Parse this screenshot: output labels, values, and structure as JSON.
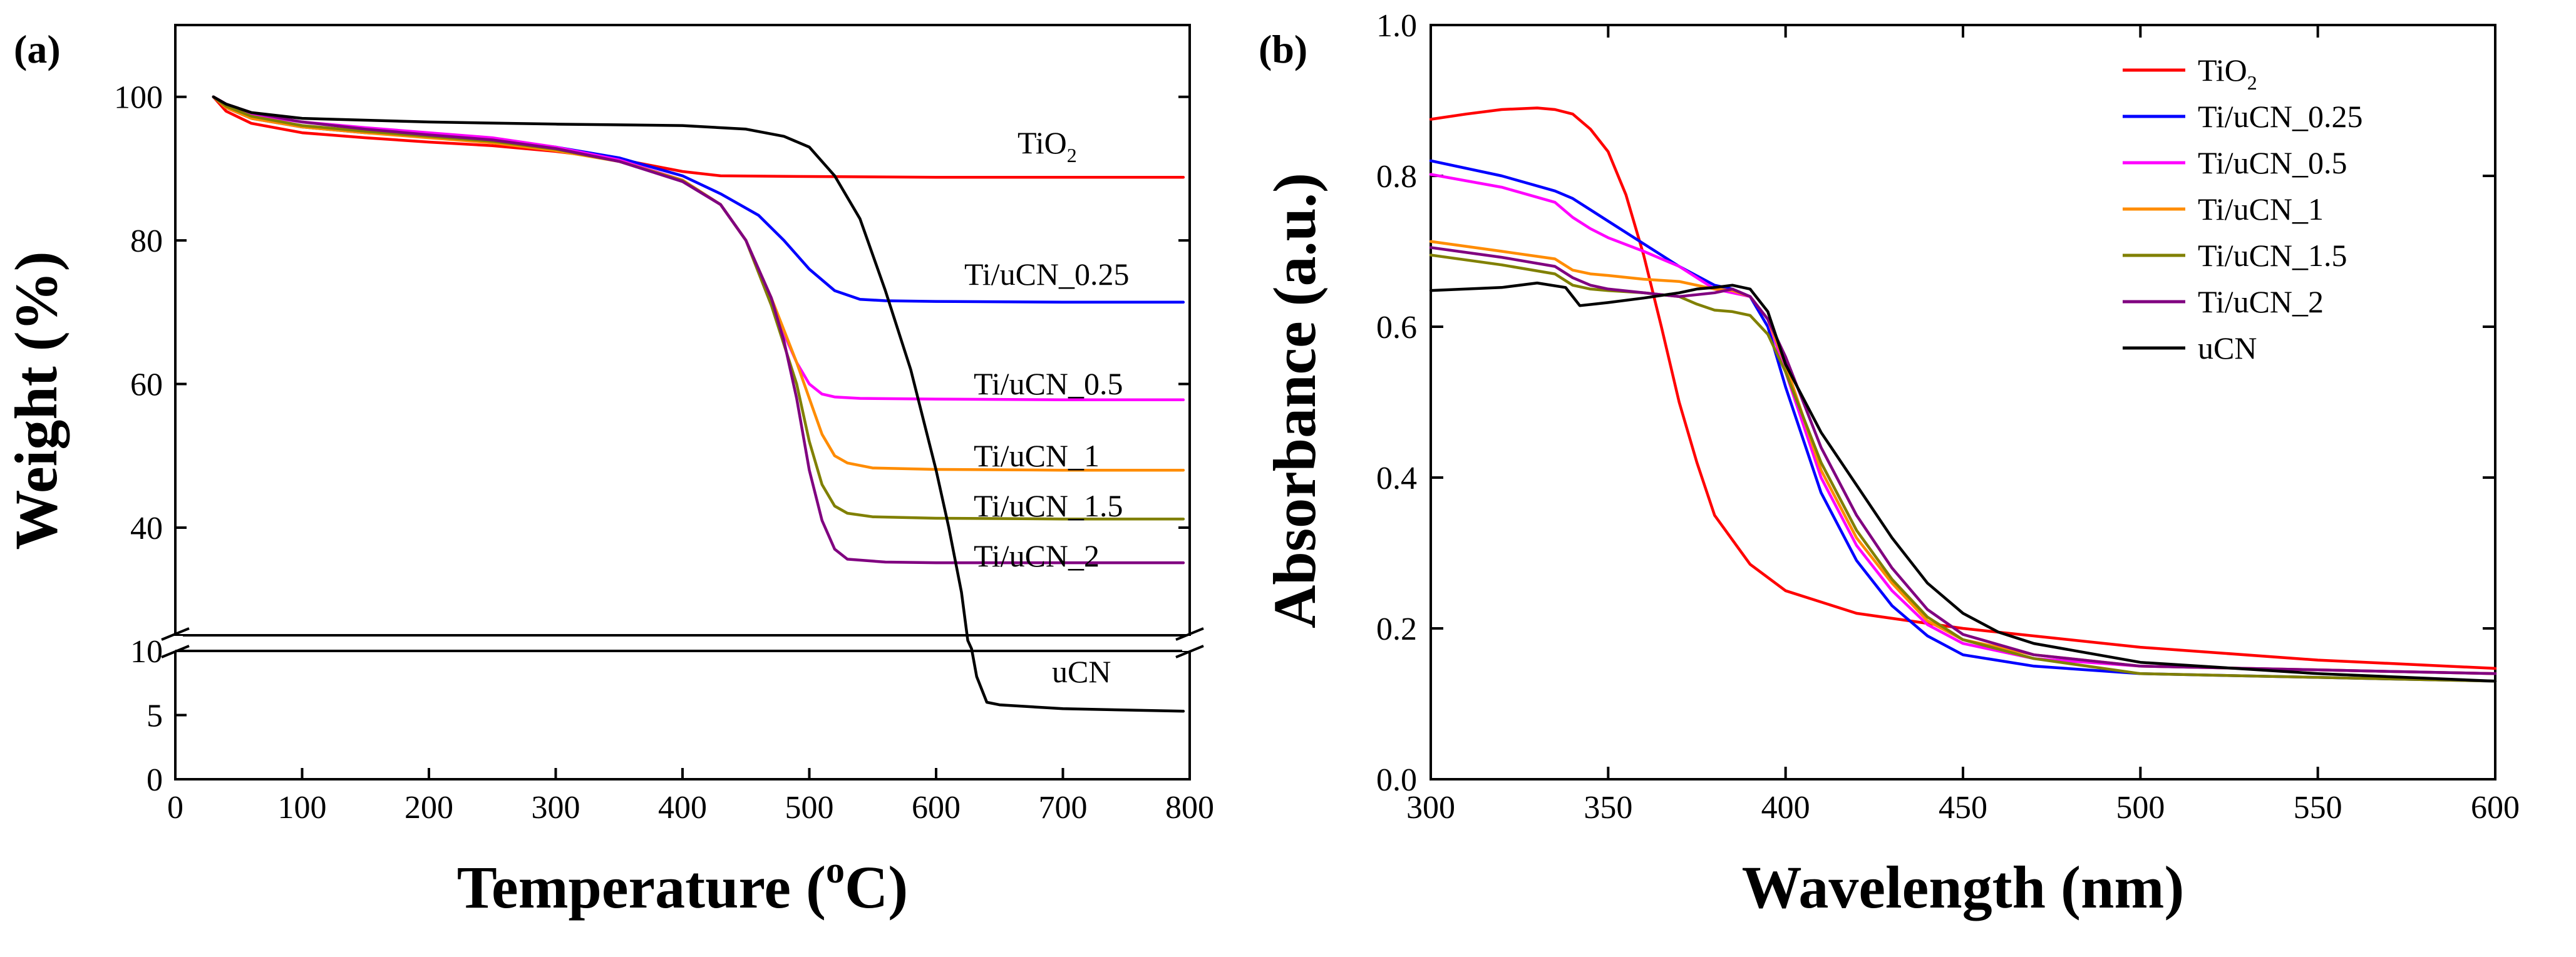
{
  "chart_data": [
    {
      "type": "line",
      "panel_label": "(a)",
      "xlabel": "Temperature (",
      "xlabel_sup": "o",
      "xlabel_tail": "C)",
      "ylabel": "Weight (%)",
      "xlim": [
        0,
        800
      ],
      "xticks": [
        0,
        100,
        200,
        300,
        400,
        500,
        600,
        700,
        800
      ],
      "upper_ylim": [
        25,
        110
      ],
      "upper_yticks": [
        40,
        60,
        80,
        100
      ],
      "lower_ylim": [
        0,
        10
      ],
      "lower_yticks": [
        0,
        5,
        10
      ],
      "axis_break": true,
      "series": [
        {
          "name": "TiO2",
          "label_main": "TiO",
          "label_sub": "2",
          "color": "#ff0000",
          "x": [
            30,
            40,
            60,
            100,
            150,
            200,
            250,
            300,
            350,
            400,
            430,
            500,
            600,
            700,
            795
          ],
          "y": [
            100,
            98,
            96.3,
            95,
            94.3,
            93.7,
            93.2,
            92.4,
            91.3,
            89.6,
            89,
            88.9,
            88.8,
            88.8,
            88.8
          ]
        },
        {
          "name": "Ti/uCN_0.25",
          "label_main": "Ti/uCN_0.25",
          "label_sub": "",
          "color": "#0000ff",
          "x": [
            30,
            40,
            60,
            100,
            150,
            200,
            250,
            300,
            350,
            400,
            430,
            460,
            480,
            500,
            520,
            540,
            560,
            600,
            700,
            795
          ],
          "y": [
            100,
            98.5,
            97,
            95.8,
            95,
            94.5,
            94,
            93,
            91.5,
            89,
            86.5,
            83.5,
            80,
            76,
            73,
            71.8,
            71.6,
            71.5,
            71.4,
            71.4
          ]
        },
        {
          "name": "Ti/uCN_0.5",
          "label_main": "Ti/uCN_0.5",
          "label_sub": "",
          "color": "#ff00ff",
          "x": [
            30,
            40,
            60,
            100,
            150,
            200,
            250,
            300,
            350,
            400,
            430,
            450,
            470,
            490,
            500,
            510,
            520,
            540,
            600,
            700,
            795
          ],
          "y": [
            100,
            99,
            97.5,
            96.5,
            95.7,
            95,
            94.3,
            93,
            91.2,
            88.4,
            85,
            80,
            71,
            63,
            60,
            58.6,
            58.2,
            58.0,
            57.9,
            57.8,
            57.8
          ]
        },
        {
          "name": "Ti/uCN_1",
          "label_main": "Ti/uCN_1",
          "label_sub": "",
          "color": "#ff8c00",
          "x": [
            30,
            40,
            60,
            100,
            150,
            200,
            250,
            300,
            350,
            400,
            430,
            450,
            470,
            490,
            500,
            510,
            520,
            530,
            550,
            600,
            700,
            795
          ],
          "y": [
            100,
            98.5,
            97,
            95.8,
            95,
            94.3,
            93.6,
            92.5,
            91,
            88.4,
            85,
            80,
            72,
            63,
            58,
            53,
            50,
            49,
            48.3,
            48.1,
            48,
            48
          ]
        },
        {
          "name": "Ti/uCN_1.5",
          "label_main": "Ti/uCN_1.5",
          "label_sub": "",
          "color": "#808000",
          "x": [
            30,
            40,
            60,
            100,
            150,
            200,
            250,
            300,
            350,
            400,
            430,
            450,
            470,
            490,
            500,
            510,
            520,
            530,
            550,
            600,
            700,
            795
          ],
          "y": [
            100,
            98.7,
            97.3,
            96,
            95.2,
            94.5,
            93.8,
            92.7,
            91,
            88.3,
            85,
            80,
            71,
            60,
            52,
            46,
            43,
            42,
            41.5,
            41.3,
            41.2,
            41.2
          ]
        },
        {
          "name": "Ti/uCN_2",
          "label_main": "Ti/uCN_2",
          "label_sub": "",
          "color": "#800080",
          "x": [
            30,
            40,
            60,
            100,
            150,
            200,
            250,
            300,
            350,
            400,
            430,
            450,
            470,
            480,
            490,
            500,
            510,
            520,
            530,
            560,
            600,
            700,
            795
          ],
          "y": [
            100,
            99,
            97.8,
            96.5,
            95.5,
            94.7,
            94,
            92.8,
            91,
            88.2,
            85,
            80,
            72,
            66,
            58,
            48,
            41,
            37,
            35.6,
            35.2,
            35.1,
            35.1,
            35.1
          ]
        },
        {
          "name": "uCN",
          "label_main": "uCN",
          "label_sub": "",
          "color": "#000000",
          "x": [
            30,
            40,
            60,
            100,
            200,
            300,
            400,
            450,
            480,
            500,
            520,
            540,
            560,
            580,
            600,
            610,
            620,
            625,
            628,
            632,
            640,
            650,
            700,
            795
          ],
          "y": [
            100,
            99,
            97.8,
            97,
            96.5,
            96.2,
            96,
            95.5,
            94.5,
            93,
            89,
            83,
            73,
            62,
            48,
            40,
            31,
            20,
            12,
            8,
            6,
            5.8,
            5.5,
            5.3
          ]
        }
      ]
    },
    {
      "type": "line",
      "panel_label": "(b)",
      "xlabel": "Wavelength (nm)",
      "ylabel": "Absorbance (a.u.)",
      "xlim": [
        300,
        600
      ],
      "ylim": [
        0.0,
        1.0
      ],
      "xticks": [
        300,
        350,
        400,
        450,
        500,
        550,
        600
      ],
      "yticks": [
        "0.0",
        "0.2",
        "0.4",
        "0.6",
        "0.8",
        "1.0"
      ],
      "legend_position": "top-right",
      "series": [
        {
          "name": "TiO2",
          "label_main": "TiO",
          "label_sub": "2",
          "color": "#ff0000",
          "x": [
            300,
            310,
            320,
            330,
            335,
            340,
            345,
            350,
            355,
            360,
            365,
            370,
            375,
            380,
            390,
            400,
            420,
            450,
            500,
            550,
            600
          ],
          "y": [
            0.875,
            0.882,
            0.888,
            0.89,
            0.888,
            0.882,
            0.862,
            0.832,
            0.775,
            0.695,
            0.6,
            0.5,
            0.42,
            0.35,
            0.285,
            0.25,
            0.22,
            0.2,
            0.175,
            0.158,
            0.147
          ]
        },
        {
          "name": "Ti/uCN_0.25",
          "label_main": "Ti/uCN_0.25",
          "label_sub": "",
          "color": "#0000ff",
          "x": [
            300,
            320,
            335,
            340,
            345,
            350,
            360,
            370,
            380,
            385,
            390,
            395,
            400,
            410,
            420,
            430,
            440,
            450,
            470,
            500,
            550,
            600
          ],
          "y": [
            0.82,
            0.8,
            0.78,
            0.77,
            0.755,
            0.74,
            0.71,
            0.68,
            0.655,
            0.65,
            0.64,
            0.6,
            0.52,
            0.38,
            0.29,
            0.23,
            0.19,
            0.165,
            0.15,
            0.14,
            0.135,
            0.13
          ]
        },
        {
          "name": "Ti/uCN_0.5",
          "label_main": "Ti/uCN_0.5",
          "label_sub": "",
          "color": "#ff00ff",
          "x": [
            300,
            320,
            335,
            340,
            345,
            350,
            360,
            370,
            375,
            380,
            385,
            390,
            395,
            400,
            410,
            420,
            430,
            440,
            450,
            470,
            500,
            550,
            600
          ],
          "y": [
            0.802,
            0.785,
            0.765,
            0.745,
            0.73,
            0.718,
            0.7,
            0.68,
            0.665,
            0.65,
            0.645,
            0.64,
            0.61,
            0.54,
            0.4,
            0.31,
            0.25,
            0.205,
            0.18,
            0.16,
            0.15,
            0.145,
            0.14
          ]
        },
        {
          "name": "Ti/uCN_1",
          "label_main": "Ti/uCN_1",
          "label_sub": "",
          "color": "#ff8c00",
          "x": [
            300,
            320,
            335,
            340,
            345,
            350,
            360,
            370,
            380,
            385,
            390,
            395,
            400,
            410,
            420,
            430,
            440,
            450,
            470,
            500,
            550,
            600
          ],
          "y": [
            0.713,
            0.7,
            0.69,
            0.675,
            0.67,
            0.668,
            0.663,
            0.66,
            0.65,
            0.648,
            0.64,
            0.61,
            0.55,
            0.41,
            0.32,
            0.26,
            0.21,
            0.185,
            0.165,
            0.15,
            0.145,
            0.14
          ]
        },
        {
          "name": "Ti/uCN_1.5",
          "label_main": "Ti/uCN_1.5",
          "label_sub": "",
          "color": "#808000",
          "x": [
            300,
            320,
            335,
            340,
            345,
            350,
            360,
            370,
            375,
            380,
            385,
            390,
            395,
            400,
            410,
            420,
            430,
            440,
            450,
            470,
            500,
            550,
            600
          ],
          "y": [
            0.695,
            0.682,
            0.67,
            0.655,
            0.65,
            0.648,
            0.645,
            0.64,
            0.63,
            0.622,
            0.62,
            0.615,
            0.59,
            0.54,
            0.42,
            0.33,
            0.265,
            0.215,
            0.185,
            0.16,
            0.14,
            0.135,
            0.13
          ]
        },
        {
          "name": "Ti/uCN_2",
          "label_main": "Ti/uCN_2",
          "label_sub": "",
          "color": "#800080",
          "x": [
            300,
            320,
            335,
            340,
            345,
            350,
            360,
            370,
            380,
            385,
            390,
            395,
            400,
            410,
            420,
            430,
            440,
            450,
            470,
            500,
            550,
            600
          ],
          "y": [
            0.705,
            0.692,
            0.68,
            0.665,
            0.655,
            0.65,
            0.645,
            0.64,
            0.645,
            0.65,
            0.64,
            0.61,
            0.56,
            0.44,
            0.35,
            0.28,
            0.225,
            0.192,
            0.165,
            0.15,
            0.145,
            0.14
          ]
        },
        {
          "name": "uCN",
          "label_main": "uCN",
          "label_sub": "",
          "color": "#000000",
          "x": [
            300,
            320,
            330,
            338,
            340,
            342,
            350,
            360,
            370,
            375,
            380,
            385,
            390,
            395,
            400,
            410,
            420,
            430,
            440,
            450,
            460,
            470,
            500,
            550,
            600
          ],
          "y": [
            0.648,
            0.652,
            0.658,
            0.652,
            0.64,
            0.628,
            0.632,
            0.638,
            0.645,
            0.65,
            0.652,
            0.655,
            0.65,
            0.62,
            0.55,
            0.46,
            0.39,
            0.32,
            0.26,
            0.22,
            0.195,
            0.18,
            0.155,
            0.14,
            0.13
          ]
        }
      ]
    }
  ]
}
